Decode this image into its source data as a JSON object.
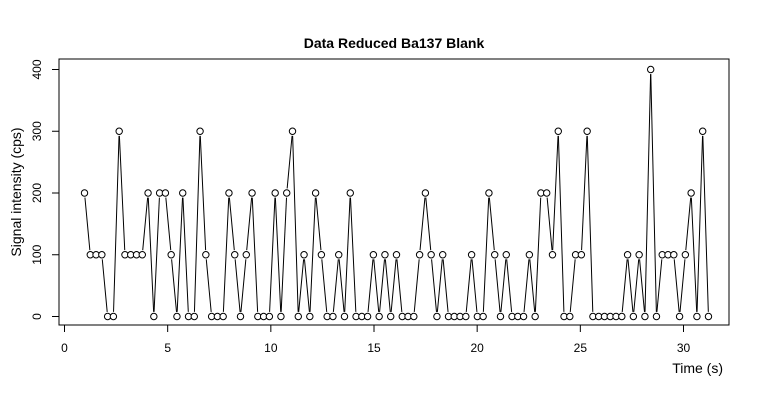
{
  "chart_data": {
    "type": "line",
    "title": "Data Reduced Ba137 Blank",
    "xlabel": "Time (s)",
    "ylabel": "Signal intensity (cps)",
    "xlim": [
      0,
      32
    ],
    "ylim": [
      0,
      400
    ],
    "xticks": [
      0,
      5,
      10,
      15,
      20,
      25,
      30
    ],
    "yticks": [
      0,
      100,
      200,
      300,
      400
    ],
    "series": [
      {
        "x": [
          0.97,
          1.25,
          1.53,
          1.81,
          2.09,
          2.37,
          2.65,
          2.93,
          3.21,
          3.49,
          3.77,
          4.05,
          4.33,
          4.61,
          4.89,
          5.17,
          5.45,
          5.73,
          6.01,
          6.29,
          6.57,
          6.85,
          7.13,
          7.41,
          7.69,
          7.97,
          8.25,
          8.53,
          8.81,
          9.09,
          9.37,
          9.65,
          9.93,
          10.21,
          10.49,
          10.77,
          11.05,
          11.33,
          11.61,
          11.89,
          12.17,
          12.45,
          12.73,
          13.01,
          13.29,
          13.57,
          13.85,
          14.13,
          14.41,
          14.69,
          14.97,
          15.25,
          15.53,
          15.81,
          16.09,
          16.37,
          16.65,
          16.93,
          17.21,
          17.49,
          17.77,
          18.05,
          18.33,
          18.61,
          18.89,
          19.17,
          19.45,
          19.73,
          20.01,
          20.29,
          20.57,
          20.85,
          21.13,
          21.41,
          21.69,
          21.97,
          22.25,
          22.53,
          22.81,
          23.09,
          23.37,
          23.65,
          23.93,
          24.21,
          24.49,
          24.77,
          25.05,
          25.33,
          25.61,
          25.89,
          26.17,
          26.45,
          26.73,
          27.01,
          27.29,
          27.57,
          27.85,
          28.13,
          28.41,
          28.69,
          28.97,
          29.25,
          29.53,
          29.81,
          30.09,
          30.37,
          30.65,
          30.93,
          31.21
        ],
        "y": [
          200,
          100,
          100,
          100,
          0,
          0,
          300,
          100,
          100,
          100,
          100,
          200,
          0,
          200,
          200,
          100,
          0,
          200,
          0,
          0,
          300,
          100,
          0,
          0,
          0,
          200,
          100,
          0,
          100,
          200,
          0,
          0,
          0,
          200,
          0,
          200,
          300,
          0,
          100,
          0,
          200,
          100,
          0,
          0,
          100,
          0,
          200,
          0,
          0,
          0,
          100,
          0,
          100,
          0,
          100,
          0,
          0,
          0,
          100,
          200,
          100,
          0,
          100,
          0,
          0,
          0,
          0,
          100,
          0,
          0,
          200,
          100,
          0,
          100,
          0,
          0,
          0,
          100,
          0,
          200,
          200,
          100,
          300,
          0,
          0,
          100,
          100,
          300,
          0,
          0,
          0,
          0,
          0,
          0,
          100,
          0,
          100,
          0,
          400,
          0,
          100,
          100,
          100,
          0,
          100,
          200,
          0,
          300,
          0
        ]
      }
    ]
  }
}
